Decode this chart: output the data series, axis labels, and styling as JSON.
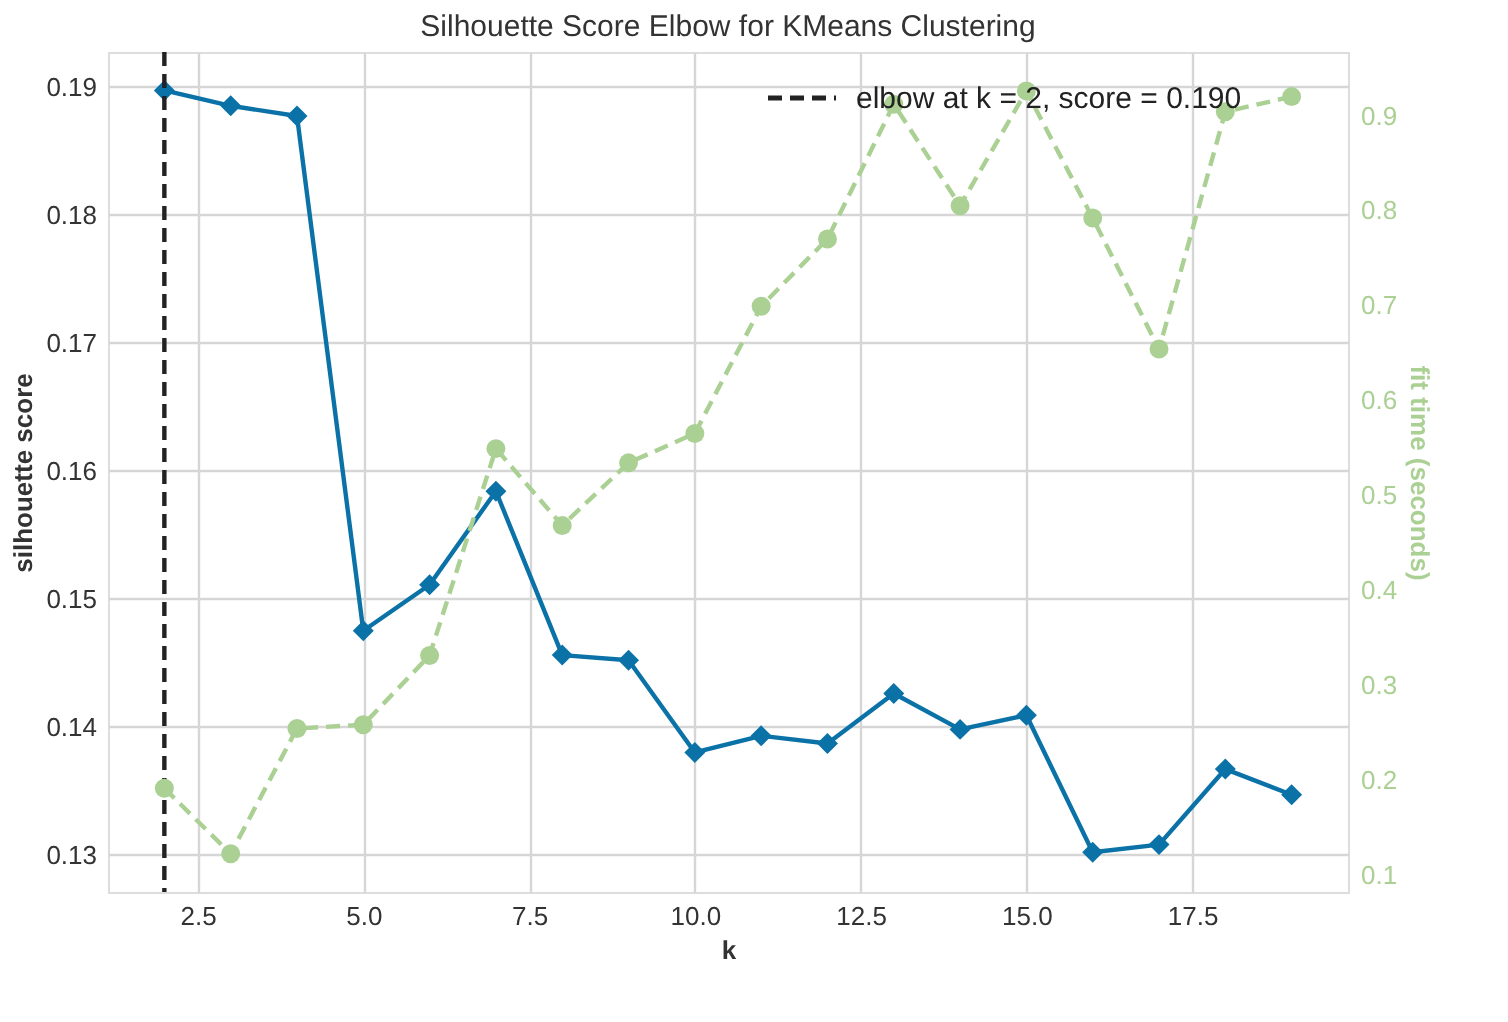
{
  "chart_data": {
    "type": "line",
    "title": "Silhouette Score Elbow for KMeans Clustering",
    "xlabel": "k",
    "ylabel": "silhouette score",
    "y2label": "fit time (seconds)",
    "x": [
      2,
      3,
      4,
      5,
      6,
      7,
      8,
      9,
      10,
      11,
      12,
      13,
      14,
      15,
      16,
      17,
      18,
      19
    ],
    "series": [
      {
        "color": "#0b72a8",
        "marker": "diamond",
        "line_style": "solid",
        "values": [
          0.1897,
          0.1885,
          0.1877,
          0.1475,
          0.1511,
          0.1584,
          0.1456,
          0.1452,
          0.138,
          0.1393,
          0.1387,
          0.1426,
          0.1398,
          0.1409,
          0.1302,
          0.1308,
          0.1367,
          0.1347
        ]
      },
      {
        "color": "#abd094",
        "marker": "circle",
        "line_style": "dashed",
        "axis": "y2",
        "values": [
          0.191,
          0.122,
          0.254,
          0.258,
          0.331,
          0.549,
          0.468,
          0.534,
          0.565,
          0.699,
          0.77,
          0.912,
          0.805,
          0.926,
          0.792,
          0.654,
          0.904,
          0.92
        ]
      }
    ],
    "xlim": [
      1.15,
      19.85
    ],
    "ylim": [
      0.1271,
      0.1927
    ],
    "y2lim": [
      0.0817,
      0.967
    ],
    "xticks": [
      2.5,
      {
        "value": 5,
        "label": "5.0"
      },
      7.5,
      {
        "value": 10,
        "label": "10.0"
      },
      12.5,
      {
        "value": 15,
        "label": "15.0"
      },
      17.5
    ],
    "yticks": [
      0.13,
      0.14,
      0.15,
      0.16,
      0.17,
      0.18,
      0.19
    ],
    "y2ticks": [
      0.1,
      0.2,
      0.3,
      0.4,
      0.5,
      0.6,
      0.7,
      0.8,
      0.9
    ],
    "ref_lines": [
      {
        "axis": "x",
        "value": 2,
        "label": "elbow at k = 2, score = 0.190",
        "color": "#222222",
        "line_style": "dashed"
      }
    ],
    "grid": true,
    "legend": "top right"
  }
}
